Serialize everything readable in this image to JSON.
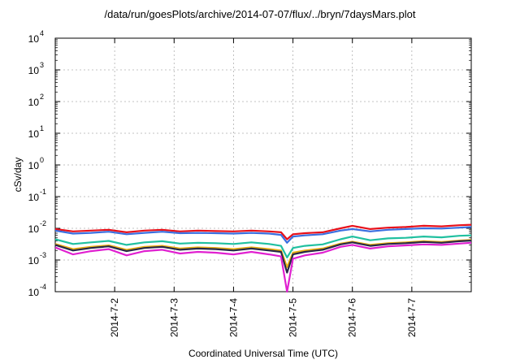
{
  "chart_data": {
    "type": "line",
    "title": "/data/run/goesPlots/archive/2014-07-07/flux/../bryn/7daysMars.plot",
    "xlabel": "Coordinated Universal Time (UTC)",
    "ylabel": "cSv/day",
    "y_scale": "log",
    "ylim": [
      0.0001,
      10000
    ],
    "y_ticks": [
      {
        "base": "10",
        "exp": "-4"
      },
      {
        "base": "10",
        "exp": "-3"
      },
      {
        "base": "10",
        "exp": "-2"
      },
      {
        "base": "10",
        "exp": "-1"
      },
      {
        "base": "10",
        "exp": "0"
      },
      {
        "base": "10",
        "exp": "1"
      },
      {
        "base": "10",
        "exp": "2"
      },
      {
        "base": "10",
        "exp": "3"
      },
      {
        "base": "10",
        "exp": "4"
      }
    ],
    "xlim": [
      "2014-07-01T00:00",
      "2014-07-08T00:00"
    ],
    "x_ticks": [
      {
        "label": "2014-7-2",
        "day": 1
      },
      {
        "label": "2014-7-3",
        "day": 2
      },
      {
        "label": "2014-7-4",
        "day": 3
      },
      {
        "label": "2014-7-5",
        "day": 4
      },
      {
        "label": "2014-7-6",
        "day": 5
      },
      {
        "label": "2014-7-7",
        "day": 6
      }
    ],
    "grid": true,
    "x_days": [
      0,
      0.3,
      0.6,
      0.9,
      1.2,
      1.5,
      1.8,
      2.1,
      2.4,
      2.7,
      3.0,
      3.3,
      3.6,
      3.8,
      3.9,
      4.0,
      4.2,
      4.5,
      4.8,
      5.0,
      5.3,
      5.6,
      5.9,
      6.2,
      6.5,
      6.8,
      7.0
    ],
    "series": [
      {
        "color": "#e8101a",
        "values": [
          0.0095,
          0.008,
          0.0085,
          0.009,
          0.0075,
          0.0085,
          0.009,
          0.008,
          0.0085,
          0.0082,
          0.008,
          0.0085,
          0.008,
          0.0075,
          0.0045,
          0.0065,
          0.007,
          0.0075,
          0.01,
          0.012,
          0.0095,
          0.0105,
          0.011,
          0.012,
          0.0115,
          0.0125,
          0.013
        ]
      },
      {
        "color": "#3a6fe0",
        "values": [
          0.0085,
          0.0068,
          0.0072,
          0.0078,
          0.0065,
          0.0072,
          0.0078,
          0.007,
          0.0072,
          0.007,
          0.0068,
          0.0072,
          0.0068,
          0.0062,
          0.0035,
          0.0055,
          0.006,
          0.0065,
          0.0085,
          0.0095,
          0.008,
          0.009,
          0.0095,
          0.01,
          0.0098,
          0.0105,
          0.011
        ]
      },
      {
        "color": "#20c0a0",
        "values": [
          0.0045,
          0.0032,
          0.0036,
          0.004,
          0.003,
          0.0036,
          0.0039,
          0.0033,
          0.0035,
          0.0034,
          0.0032,
          0.0036,
          0.0032,
          0.0028,
          0.0012,
          0.0024,
          0.0028,
          0.0031,
          0.0045,
          0.0055,
          0.0042,
          0.0048,
          0.005,
          0.0055,
          0.0052,
          0.0058,
          0.006
        ]
      },
      {
        "color": "#e8b010",
        "values": [
          0.0032,
          0.0022,
          0.0026,
          0.0029,
          0.0021,
          0.0026,
          0.0028,
          0.0023,
          0.0025,
          0.0024,
          0.0022,
          0.0025,
          0.0022,
          0.002,
          0.0006,
          0.0017,
          0.002,
          0.0023,
          0.0033,
          0.0038,
          0.003,
          0.0034,
          0.0036,
          0.0039,
          0.0037,
          0.0041,
          0.0043
        ]
      },
      {
        "color": "#282848",
        "values": [
          0.003,
          0.002,
          0.0024,
          0.0027,
          0.0019,
          0.0024,
          0.0026,
          0.0021,
          0.0023,
          0.0022,
          0.002,
          0.0023,
          0.002,
          0.0018,
          0.0004,
          0.0015,
          0.0018,
          0.0021,
          0.0031,
          0.0036,
          0.0028,
          0.0032,
          0.0034,
          0.0037,
          0.0035,
          0.0039,
          0.0041
        ]
      },
      {
        "color": "#e020d0",
        "values": [
          0.0025,
          0.0015,
          0.0019,
          0.0022,
          0.0014,
          0.0019,
          0.0021,
          0.0016,
          0.0018,
          0.0017,
          0.0015,
          0.0018,
          0.0015,
          0.0013,
          0.0001,
          0.0011,
          0.0014,
          0.0017,
          0.0026,
          0.003,
          0.0023,
          0.0027,
          0.0029,
          0.0031,
          0.003,
          0.0033,
          0.0035
        ]
      }
    ]
  }
}
